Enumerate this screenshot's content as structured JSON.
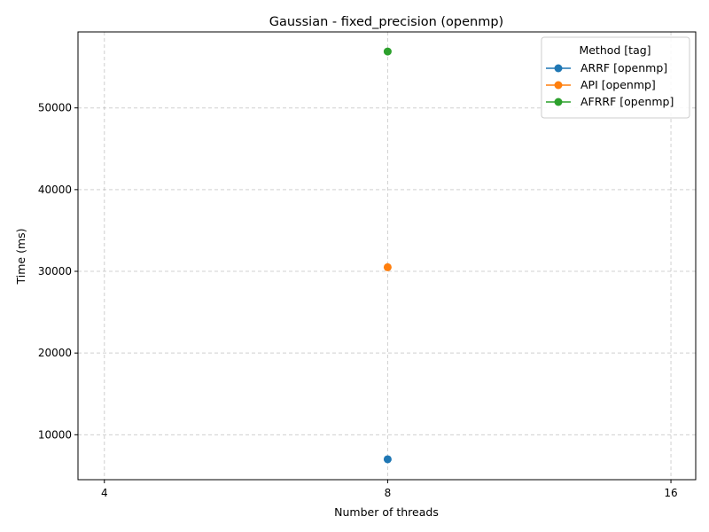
{
  "chart_data": {
    "type": "line",
    "title": "Gaussian - fixed_precision (openmp)",
    "xlabel": "Number of threads",
    "ylabel": "Time (ms)",
    "x_ticks": [
      4,
      8,
      16
    ],
    "y_ticks": [
      10000,
      20000,
      30000,
      40000,
      50000
    ],
    "x_scale": "log2",
    "xlim": [
      3.75,
      17
    ],
    "ylim": [
      4500,
      59300
    ],
    "grid": true,
    "legend": {
      "title": "Method [tag]",
      "placement": "top-right"
    },
    "series": [
      {
        "name": "ARRF [openmp]",
        "color": "#1f77b4",
        "x": [
          8
        ],
        "y": [
          7000
        ]
      },
      {
        "name": "API [openmp]",
        "color": "#ff7f0e",
        "x": [
          8
        ],
        "y": [
          30500
        ]
      },
      {
        "name": "AFRRF [openmp]",
        "color": "#2ca02c",
        "x": [
          8
        ],
        "y": [
          56900
        ]
      }
    ]
  }
}
